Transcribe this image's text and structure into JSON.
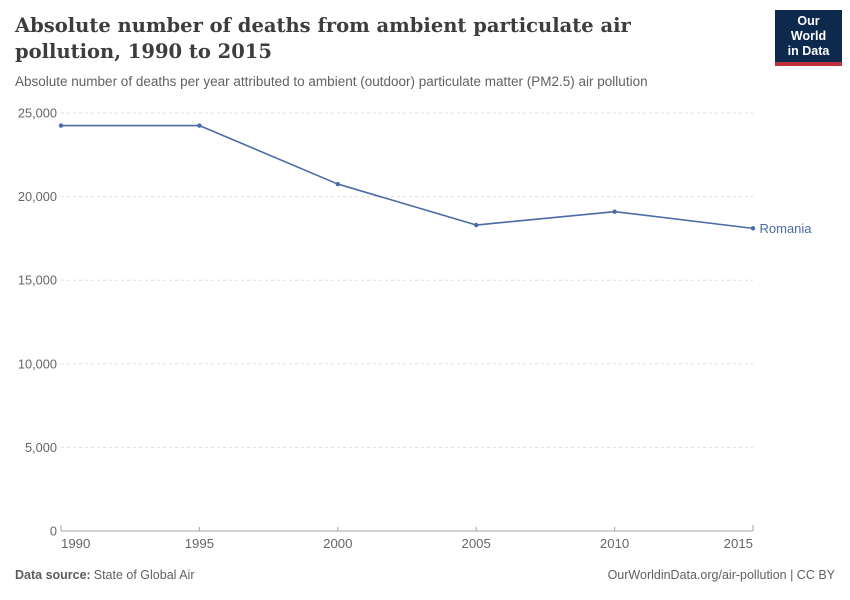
{
  "header": {
    "title": "Absolute number of deaths from ambient particulate air pollution, 1990 to 2015",
    "subtitle": "Absolute number of deaths per year attributed to ambient (outdoor) particulate matter (PM2.5) air pollution",
    "logo": {
      "line1": "Our World",
      "line2": "in Data"
    }
  },
  "footer": {
    "source_label": "Data source:",
    "source_value": "State of Global Air",
    "link": "OurWorldinData.org/air-pollution | CC BY"
  },
  "colors": {
    "title": "#3d3d3d",
    "subtitle": "#616161",
    "line": "#4c6ba5",
    "grid": "#dddddd",
    "axis": "#a5a5a5",
    "tick_text": "#666666",
    "logo_bg": "#0d2a4e",
    "logo_red": "#c0303c"
  },
  "chart_data": {
    "type": "line",
    "title": "Absolute number of deaths from ambient particulate air pollution, 1990 to 2015",
    "subtitle": "Absolute number of deaths per year attributed to ambient (outdoor) particulate matter (PM2.5) air pollution",
    "x": [
      1990,
      1995,
      2000,
      2005,
      2010,
      2015
    ],
    "series": [
      {
        "name": "Romania",
        "color": "#4c6ba5",
        "values": [
          24250,
          24250,
          20750,
          18300,
          19100,
          18100
        ]
      }
    ],
    "xlim": [
      1990,
      2015
    ],
    "ylim": [
      0,
      25000
    ],
    "x_ticks": [
      1990,
      1995,
      2000,
      2005,
      2010,
      2015
    ],
    "y_ticks": [
      0,
      5000,
      10000,
      15000,
      20000,
      25000
    ],
    "xlabel": "",
    "ylabel": "",
    "grid": "horizontal dashed",
    "legend_position": "line-end label"
  }
}
